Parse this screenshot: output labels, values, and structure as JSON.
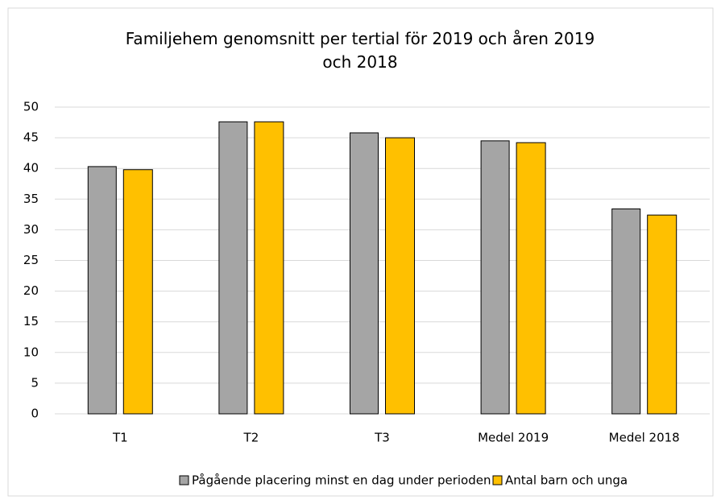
{
  "chart_data": {
    "type": "bar",
    "title": "Familjehem genomsnitt per tertial för 2019 och åren 2019 och 2018",
    "categories": [
      "T1",
      "T2",
      "T3",
      "Medel 2019",
      "Medel 2018"
    ],
    "series": [
      {
        "name": "Pågående placering minst en dag under perioden",
        "color": "#a5a5a5",
        "values": [
          40.3,
          47.6,
          45.8,
          44.5,
          33.4
        ]
      },
      {
        "name": "Antal barn och unga",
        "color": "#ffc000",
        "values": [
          39.8,
          47.6,
          45.0,
          44.2,
          32.4
        ]
      }
    ],
    "ylim": [
      0,
      50
    ],
    "yticks": [
      0,
      5,
      10,
      15,
      20,
      25,
      30,
      35,
      40,
      45,
      50
    ],
    "grid": true,
    "legend": "bottom"
  }
}
